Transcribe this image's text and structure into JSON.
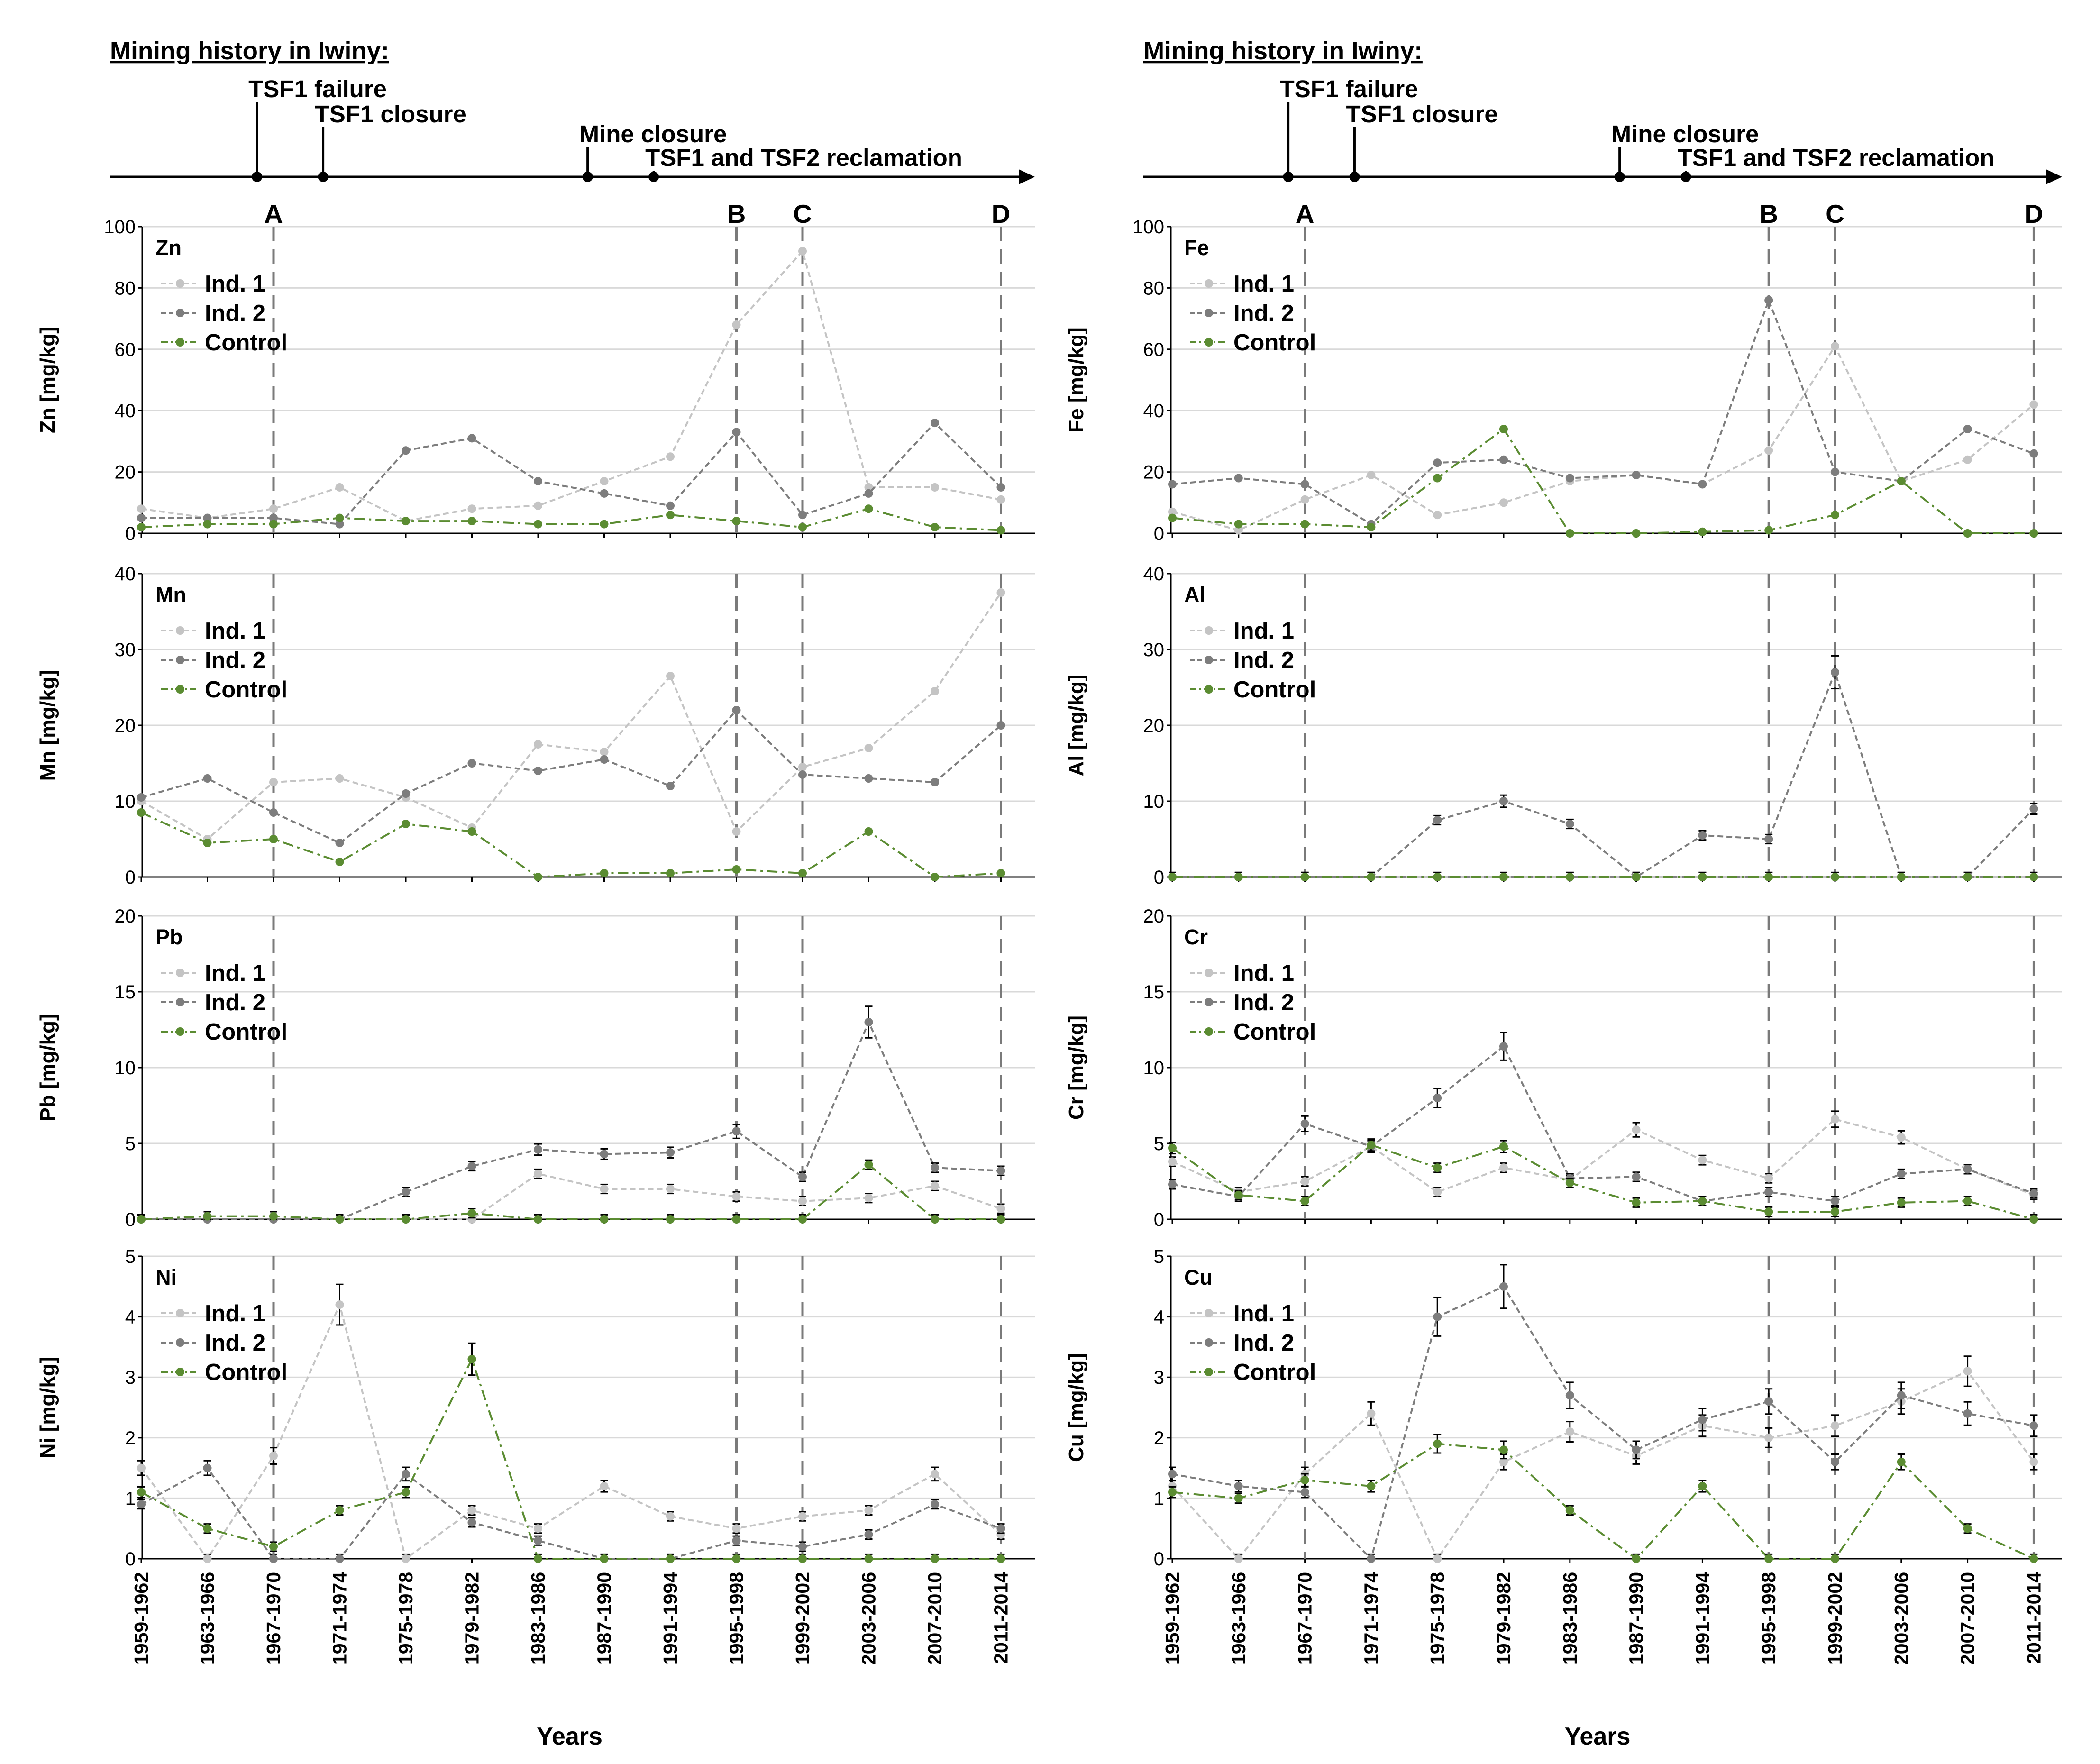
{
  "timeline": {
    "title": "Mining history in Iwiny:",
    "events": [
      {
        "year": 1967.5,
        "label": "TSF1 failure"
      },
      {
        "year": 1971.5,
        "label": "TSF1 closure"
      },
      {
        "year": 1987.5,
        "label": "Mine closure"
      },
      {
        "year": 1991.5,
        "label": "TSF1 and TSF2 reclamation"
      }
    ]
  },
  "markers": [
    {
      "label": "A",
      "index": 2
    },
    {
      "label": "B",
      "index": 9
    },
    {
      "label": "C",
      "index": 10
    },
    {
      "label": "D",
      "index": 13
    }
  ],
  "colors": {
    "ind1": "#c4c4c4",
    "ind2": "#7d7d7d",
    "control": "#5b8c32",
    "axis": "#000000",
    "grid": "#d9d9d9",
    "marker": "#7a7a7a"
  },
  "legend_labels": [
    "Ind. 1",
    "Ind. 2",
    "Control"
  ],
  "chart_data": [
    {
      "type": "line",
      "element": "Zn",
      "ylabel": "Zn  [mg/kg]",
      "ylim": [
        0,
        100
      ],
      "yticks": [
        0,
        20,
        40,
        60,
        80,
        100
      ],
      "error_bars": false,
      "x": [
        "1959-1962",
        "1963-1966",
        "1967-1970",
        "1971-1974",
        "1975-1978",
        "1979-1982",
        "1983-1986",
        "1987-1990",
        "1991-1994",
        "1995-1998",
        "1999-2002",
        "2003-2006",
        "2007-2010",
        "2011-2014"
      ],
      "series": [
        {
          "name": "Ind. 1",
          "values": [
            8,
            5,
            8,
            15,
            4,
            8,
            9,
            17,
            25,
            68,
            92,
            15,
            15,
            11
          ]
        },
        {
          "name": "Ind. 2",
          "values": [
            5,
            5,
            5,
            3,
            27,
            31,
            17,
            13,
            9,
            33,
            6,
            13,
            36,
            15
          ]
        },
        {
          "name": "Control",
          "values": [
            2,
            3,
            3,
            5,
            4,
            4,
            3,
            3,
            6,
            4,
            2,
            8,
            2,
            1
          ]
        }
      ]
    },
    {
      "type": "line",
      "element": "Fe",
      "ylabel": "Fe  [mg/kg]",
      "ylim": [
        0,
        100
      ],
      "yticks": [
        0,
        20,
        40,
        60,
        80,
        100
      ],
      "error_bars": false,
      "x": [
        "1959-1962",
        "1963-1966",
        "1967-1970",
        "1971-1974",
        "1975-1978",
        "1979-1982",
        "1983-1986",
        "1987-1990",
        "1991-1994",
        "1995-1998",
        "1999-2002",
        "2003-2006",
        "2007-2010",
        "2011-2014"
      ],
      "series": [
        {
          "name": "Ind. 1",
          "values": [
            7,
            1,
            11,
            19,
            6,
            10,
            17,
            19,
            16,
            27,
            61,
            17,
            24,
            42
          ]
        },
        {
          "name": "Ind. 2",
          "values": [
            16,
            18,
            16,
            3,
            23,
            24,
            18,
            19,
            16,
            76,
            20,
            17,
            34,
            26
          ]
        },
        {
          "name": "Control",
          "values": [
            5,
            3,
            3,
            2,
            18,
            34,
            0,
            0,
            0.5,
            1,
            6,
            17,
            0,
            0
          ]
        }
      ]
    },
    {
      "type": "line",
      "element": "Mn",
      "ylabel": "Mn  [mg/kg]",
      "ylim": [
        0,
        40
      ],
      "yticks": [
        0,
        10,
        20,
        30,
        40
      ],
      "error_bars": false,
      "x": [
        "1959-1962",
        "1963-1966",
        "1967-1970",
        "1971-1974",
        "1975-1978",
        "1979-1982",
        "1983-1986",
        "1987-1990",
        "1991-1994",
        "1995-1998",
        "1999-2002",
        "2003-2006",
        "2007-2010",
        "2011-2014"
      ],
      "series": [
        {
          "name": "Ind. 1",
          "values": [
            10,
            5,
            12.5,
            13,
            10.5,
            6.5,
            17.5,
            16.5,
            26.5,
            6,
            14.5,
            17,
            24.5,
            37.5
          ]
        },
        {
          "name": "Ind. 2",
          "values": [
            10.5,
            13,
            8.5,
            4.5,
            11,
            15,
            14,
            15.5,
            12,
            22,
            13.5,
            13,
            12.5,
            20
          ]
        },
        {
          "name": "Control",
          "values": [
            8.5,
            4.5,
            5,
            2,
            7,
            6,
            0,
            0.5,
            0.5,
            1,
            0.5,
            6,
            0,
            0.5
          ]
        }
      ]
    },
    {
      "type": "line",
      "element": "Al",
      "ylabel": "Al  [mg/kg]",
      "ylim": [
        0,
        40
      ],
      "yticks": [
        0,
        10,
        20,
        30,
        40
      ],
      "error_bars": true,
      "x": [
        "1959-1962",
        "1963-1966",
        "1967-1970",
        "1971-1974",
        "1975-1978",
        "1979-1982",
        "1983-1986",
        "1987-1990",
        "1991-1994",
        "1995-1998",
        "1999-2002",
        "2003-2006",
        "2007-2010",
        "2011-2014"
      ],
      "series": [
        {
          "name": "Ind. 1",
          "values": [
            0,
            0,
            0,
            0,
            0,
            0,
            0,
            0,
            0,
            0,
            0,
            0,
            0,
            0
          ]
        },
        {
          "name": "Ind. 2",
          "values": [
            0,
            0,
            0,
            0,
            7.5,
            10,
            7,
            0,
            5.5,
            5,
            27,
            0,
            0,
            9
          ]
        },
        {
          "name": "Control",
          "values": [
            0,
            0,
            0,
            0,
            0,
            0,
            0,
            0,
            0,
            0,
            0,
            0,
            0,
            0
          ]
        }
      ]
    },
    {
      "type": "line",
      "element": "Pb",
      "ylabel": "Pb  [mg/kg]",
      "ylim": [
        0,
        20
      ],
      "yticks": [
        0,
        5,
        10,
        15,
        20
      ],
      "error_bars": true,
      "x": [
        "1959-1962",
        "1963-1966",
        "1967-1970",
        "1971-1974",
        "1975-1978",
        "1979-1982",
        "1983-1986",
        "1987-1990",
        "1991-1994",
        "1995-1998",
        "1999-2002",
        "2003-2006",
        "2007-2010",
        "2011-2014"
      ],
      "series": [
        {
          "name": "Ind. 1",
          "values": [
            0,
            0,
            0,
            0,
            0,
            0,
            3,
            2,
            2,
            1.5,
            1.2,
            1.4,
            2.2,
            0.7
          ]
        },
        {
          "name": "Ind. 2",
          "values": [
            0,
            0,
            0,
            0,
            1.8,
            3.5,
            4.6,
            4.3,
            4.4,
            5.8,
            2.8,
            13,
            3.4,
            3.2
          ]
        },
        {
          "name": "Control",
          "values": [
            0,
            0.2,
            0.2,
            0,
            0,
            0.4,
            0,
            0,
            0,
            0,
            0,
            3.6,
            0,
            0
          ]
        }
      ]
    },
    {
      "type": "line",
      "element": "Cr",
      "ylabel": "Cr  [mg/kg]",
      "ylim": [
        0,
        20
      ],
      "yticks": [
        0,
        5,
        10,
        15,
        20
      ],
      "error_bars": true,
      "x": [
        "1959-1962",
        "1963-1966",
        "1967-1970",
        "1971-1974",
        "1975-1978",
        "1979-1982",
        "1983-1986",
        "1987-1990",
        "1991-1994",
        "1995-1998",
        "1999-2002",
        "2003-2006",
        "2007-2010",
        "2011-2014"
      ],
      "series": [
        {
          "name": "Ind. 1",
          "values": [
            3.8,
            1.8,
            2.5,
            4.8,
            1.8,
            3.4,
            2.6,
            5.9,
            3.9,
            2.7,
            6.6,
            5.4,
            3.3,
            1.6
          ]
        },
        {
          "name": "Ind. 2",
          "values": [
            2.3,
            1.5,
            6.3,
            4.8,
            8,
            11.4,
            2.7,
            2.8,
            1.2,
            1.8,
            1.2,
            3,
            3.3,
            1.7
          ]
        },
        {
          "name": "Control",
          "values": [
            4.7,
            1.6,
            1.2,
            4.9,
            3.4,
            4.8,
            2.4,
            1.1,
            1.2,
            0.5,
            0.5,
            1.1,
            1.2,
            0
          ]
        }
      ]
    },
    {
      "type": "line",
      "element": "Ni",
      "ylabel": "Ni  [mg/kg]",
      "ylim": [
        0,
        5
      ],
      "yticks": [
        0,
        1,
        2,
        3,
        4,
        5
      ],
      "error_bars": true,
      "x": [
        "1959-1962",
        "1963-1966",
        "1967-1970",
        "1971-1974",
        "1975-1978",
        "1979-1982",
        "1983-1986",
        "1987-1990",
        "1991-1994",
        "1995-1998",
        "1999-2002",
        "2003-2006",
        "2007-2010",
        "2011-2014"
      ],
      "series": [
        {
          "name": "Ind. 1",
          "values": [
            1.5,
            0,
            1.7,
            4.2,
            0,
            0.8,
            0.5,
            1.2,
            0.7,
            0.5,
            0.7,
            0.8,
            1.4,
            0.4
          ]
        },
        {
          "name": "Ind. 2",
          "values": [
            0.9,
            1.5,
            0,
            0,
            1.4,
            0.6,
            0.3,
            0,
            0,
            0.3,
            0.2,
            0.4,
            0.9,
            0.5
          ]
        },
        {
          "name": "Control",
          "values": [
            1.1,
            0.5,
            0.2,
            0.8,
            1.1,
            3.3,
            0,
            0,
            0,
            0,
            0,
            0,
            0,
            0
          ]
        }
      ]
    },
    {
      "type": "line",
      "element": "Cu",
      "ylabel": "Cu  [mg/kg]",
      "ylim": [
        0,
        5
      ],
      "yticks": [
        0,
        1,
        2,
        3,
        4,
        5
      ],
      "error_bars": true,
      "x": [
        "1959-1962",
        "1963-1966",
        "1967-1970",
        "1971-1974",
        "1975-1978",
        "1979-1982",
        "1983-1986",
        "1987-1990",
        "1991-1994",
        "1995-1998",
        "1999-2002",
        "2003-2006",
        "2007-2010",
        "2011-2014"
      ],
      "series": [
        {
          "name": "Ind. 1",
          "values": [
            1.2,
            0,
            1.4,
            2.4,
            0,
            1.6,
            2.1,
            1.7,
            2.2,
            2,
            2.2,
            2.6,
            3.1,
            1.6
          ]
        },
        {
          "name": "Ind. 2",
          "values": [
            1.4,
            1.2,
            1.1,
            0,
            4,
            4.5,
            2.7,
            1.8,
            2.3,
            2.6,
            1.6,
            2.7,
            2.4,
            2.2
          ]
        },
        {
          "name": "Control",
          "values": [
            1.1,
            1,
            1.3,
            1.2,
            1.9,
            1.8,
            0.8,
            0,
            1.2,
            0,
            0,
            1.6,
            0.5,
            0
          ]
        }
      ]
    }
  ],
  "x_axis_title": "Years"
}
